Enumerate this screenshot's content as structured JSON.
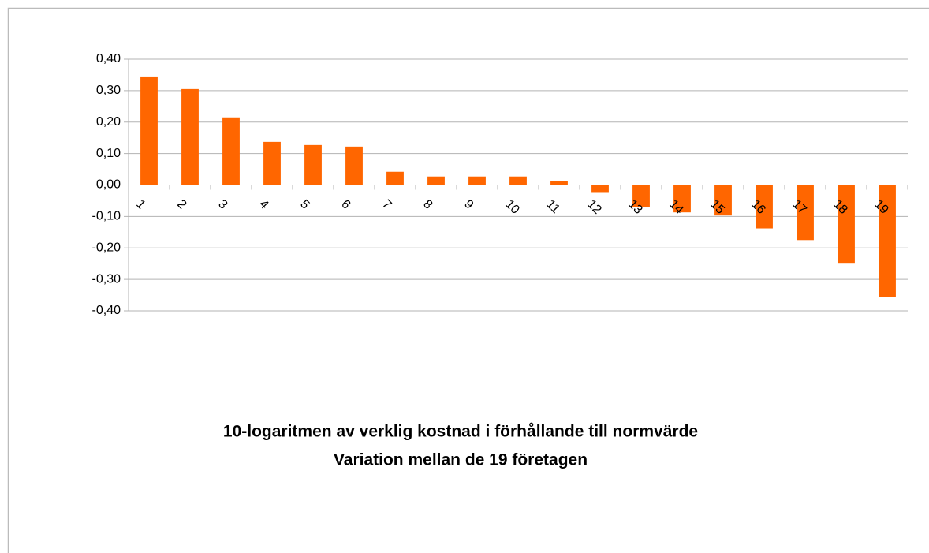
{
  "chart_data": {
    "type": "bar",
    "title": [
      "10-logaritmen av verklig kostnad i förhållande till normvärde",
      "Variation mellan de 19 företagen"
    ],
    "categories": [
      "1",
      "2",
      "3",
      "4",
      "5",
      "6",
      "7",
      "8",
      "9",
      "10",
      "11",
      "12",
      "13",
      "14",
      "15",
      "16",
      "17",
      "18",
      "19"
    ],
    "values": [
      0.345,
      0.305,
      0.215,
      0.137,
      0.127,
      0.122,
      0.042,
      0.027,
      0.027,
      0.027,
      0.012,
      -0.025,
      -0.07,
      -0.087,
      -0.097,
      -0.138,
      -0.175,
      -0.25,
      -0.357
    ],
    "color": "#ff6600",
    "ylim": [
      -0.4,
      0.4
    ],
    "yticks": [
      {
        "value": -0.4,
        "label": "-0,40"
      },
      {
        "value": -0.3,
        "label": "-0,30"
      },
      {
        "value": -0.2,
        "label": "-0,20"
      },
      {
        "value": -0.1,
        "label": "-0,10"
      },
      {
        "value": 0,
        "label": "0,00"
      },
      {
        "value": 0.1,
        "label": "0,10"
      },
      {
        "value": 0.2,
        "label": "0,20"
      },
      {
        "value": 0.3,
        "label": "0,30"
      },
      {
        "value": 0.4,
        "label": "0,40"
      }
    ],
    "grid": true
  }
}
